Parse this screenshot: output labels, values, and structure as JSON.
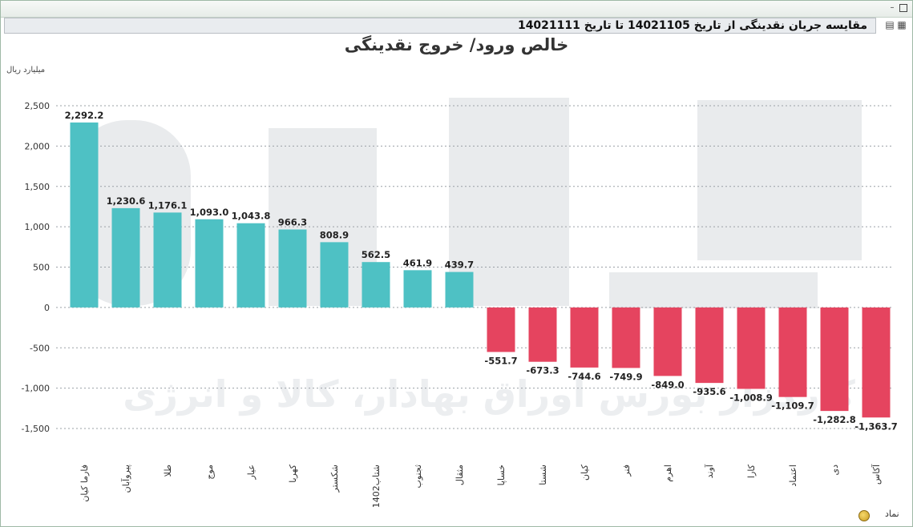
{
  "report_title": "مقایسه جریان نقدینگی از تاریخ 14021105 تا تاریخ 14021111",
  "watermark_text": "کارگزار بورس اوراق بهادار، کالا و انرژی",
  "footer_label": "نماد",
  "icons": {
    "minimize": "minimize-icon",
    "maximize": "maximize-icon",
    "print": "print-icon",
    "export": "export-icon",
    "footer": "coin-icon"
  },
  "colors": {
    "positive": "#4ec1c4",
    "negative": "#e5445f"
  },
  "chart_data": {
    "type": "bar",
    "title": "خالص ورود/ خروج نقدینگی",
    "ylabel": "میلیارد ریال",
    "xlabel": "نماد",
    "ylim": [
      -1500,
      2500
    ],
    "yticks": [
      2500,
      2000,
      1500,
      1000,
      500,
      0,
      -500,
      -1000,
      -1500
    ],
    "grid": true,
    "categories": [
      "فارما کیان",
      "پیروآبان",
      "طلا",
      "موج",
      "عیار",
      "کهربا",
      "شکستر",
      "شتاب1402",
      "ثجنوب",
      "مثقال",
      "خساپا",
      "شستا",
      "کیان",
      "فنر",
      "اهرم",
      "آوند",
      "کارا",
      "اعتماد",
      "دی",
      "آکاس"
    ],
    "values": [
      2292.2,
      1230.6,
      1176.1,
      1093.0,
      1043.8,
      966.3,
      808.9,
      562.5,
      461.9,
      439.7,
      -551.7,
      -673.3,
      -744.6,
      -749.9,
      -849.0,
      -935.6,
      -1008.9,
      -1109.7,
      -1282.8,
      -1363.7
    ],
    "value_labels": [
      "2,292.2",
      "1,230.6",
      "1,176.1",
      "1,093.0",
      "1,043.8",
      "966.3",
      "808.9",
      "562.5",
      "461.9",
      "439.7",
      "-551.7",
      "-673.3",
      "-744.6",
      "-749.9",
      "-849.0",
      "-935.6",
      "-1,008.9",
      "-1,109.7",
      "-1,282.8",
      "-1,363.7"
    ],
    "ytick_labels": [
      "2,500",
      "2,000",
      "1,500",
      "1,000",
      "500",
      "0",
      "-500",
      "-1,000",
      "-1,500"
    ]
  }
}
